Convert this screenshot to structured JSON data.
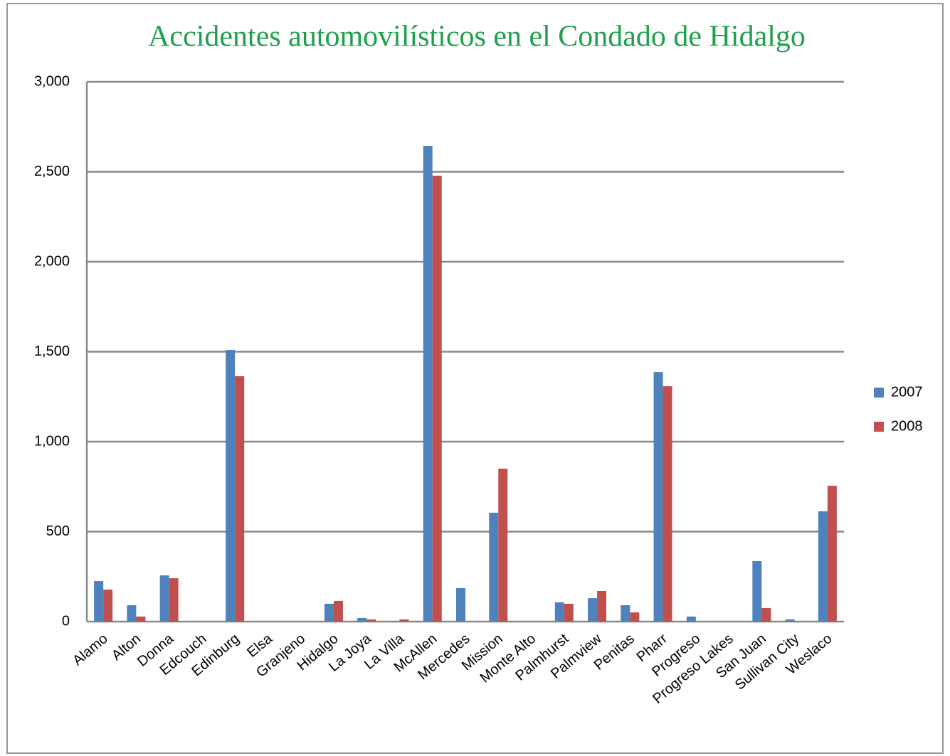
{
  "chart_data": {
    "type": "bar",
    "title": "Accidentes automovilísticos en el Condado de Hidalgo",
    "categories": [
      "Alamo",
      "Alton",
      "Donna",
      "Edcouch",
      "Edinburg",
      "Elsa",
      "Granjeno",
      "Hidalgo",
      "La Joya",
      "La Villa",
      "McAllen",
      "Mercedes",
      "Mission",
      "Monte Alto",
      "Palmhurst",
      "Palmview",
      "Penitas",
      "Pharr",
      "Progreso",
      "Progreso Lakes",
      "San Juan",
      "Sullivan City",
      "Weslaco"
    ],
    "series": [
      {
        "name": "2007",
        "color": "#4f81bd",
        "values": [
          225,
          91,
          257,
          0,
          1510,
          0,
          0,
          99,
          20,
          0,
          2644,
          186,
          605,
          0,
          107,
          130,
          91,
          1387,
          28,
          0,
          336,
          12,
          613
        ]
      },
      {
        "name": "2008",
        "color": "#c0504d",
        "values": [
          178,
          28,
          241,
          0,
          1364,
          0,
          0,
          115,
          12,
          12,
          2478,
          0,
          850,
          0,
          99,
          170,
          51,
          1308,
          0,
          0,
          75,
          0,
          755
        ]
      }
    ],
    "ylim": [
      0,
      3000
    ],
    "yticks": [
      0,
      500,
      {
        "value": 1000,
        "label": "1,000"
      },
      {
        "value": 1500,
        "label": "1,500"
      },
      {
        "value": 2000,
        "label": "2,000"
      },
      {
        "value": 2500,
        "label": "2,500"
      },
      {
        "value": 3000,
        "label": "3,000"
      }
    ],
    "grid": true,
    "legend": "right"
  }
}
